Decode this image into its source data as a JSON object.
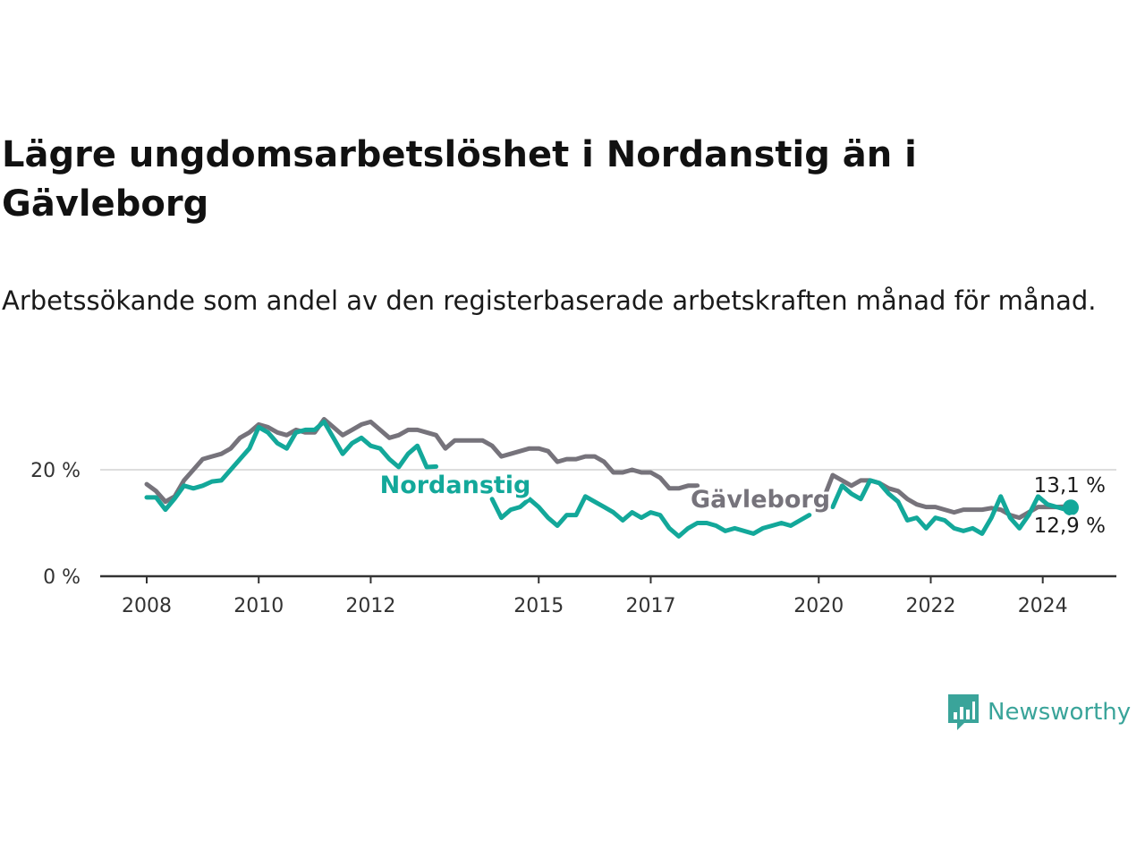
{
  "header": {
    "title": "Lägre ungdomsarbetslöshet i Nordanstig än i Gävleborg",
    "subtitle": "Arbetssökande som andel av den registerbaserade arbetskraften månad för månad."
  },
  "brand": {
    "name": "Newsworthy",
    "icon": "newsworthy-logo-icon",
    "color": "#3aa49a"
  },
  "colors": {
    "nordanstig": "#13a89a",
    "gavleborg": "#76737b",
    "axis": "#333333",
    "grid": "#dddddd"
  },
  "chart_data": {
    "type": "line",
    "title": "Lägre ungdomsarbetslöshet i Nordanstig än i Gävleborg",
    "subtitle": "Arbetssökande som andel av den registerbaserade arbetskraften månad för månad.",
    "xlabel": "",
    "ylabel": "",
    "xlim": [
      "2008-01",
      "2024-12"
    ],
    "ylim": [
      0,
      30
    ],
    "y_ticks": [
      0,
      20
    ],
    "y_tick_labels": [
      "0 %",
      "20 %"
    ],
    "x_ticks": [
      "2008",
      "2010",
      "2012",
      "2015",
      "2017",
      "2020",
      "2022",
      "2024"
    ],
    "grid": "horizontal",
    "legend": "inline-labels",
    "series": [
      {
        "name": "Nordanstig",
        "color": "#13a89a",
        "end_label": "12,9 %",
        "points": [
          [
            "2008-01",
            14.8
          ],
          [
            "2008-03",
            14.8
          ],
          [
            "2008-05",
            12.5
          ],
          [
            "2008-07",
            14.6
          ],
          [
            "2008-09",
            17.0
          ],
          [
            "2008-11",
            16.5
          ],
          [
            "2009-01",
            17.0
          ],
          [
            "2009-03",
            17.8
          ],
          [
            "2009-05",
            18.0
          ],
          [
            "2009-07",
            20.0
          ],
          [
            "2009-09",
            22.0
          ],
          [
            "2009-11",
            24.0
          ],
          [
            "2010-01",
            28.0
          ],
          [
            "2010-03",
            27.0
          ],
          [
            "2010-05",
            25.0
          ],
          [
            "2010-07",
            24.0
          ],
          [
            "2010-09",
            27.0
          ],
          [
            "2010-11",
            27.5
          ],
          [
            "2011-01",
            27.5
          ],
          [
            "2011-03",
            29.0
          ],
          [
            "2011-05",
            26.0
          ],
          [
            "2011-07",
            23.0
          ],
          [
            "2011-09",
            25.0
          ],
          [
            "2011-11",
            26.0
          ],
          [
            "2012-01",
            24.5
          ],
          [
            "2012-03",
            24.0
          ],
          [
            "2012-05",
            22.0
          ],
          [
            "2012-07",
            20.5
          ],
          [
            "2012-09",
            23.0
          ],
          [
            "2012-11",
            24.5
          ],
          [
            "2013-01",
            20.5
          ],
          [
            "2013-03",
            20.6
          ],
          null,
          [
            "2014-03",
            14.5
          ],
          [
            "2014-05",
            11.0
          ],
          [
            "2014-07",
            12.5
          ],
          [
            "2014-09",
            13.0
          ],
          [
            "2014-11",
            14.5
          ],
          [
            "2015-01",
            13.0
          ],
          [
            "2015-03",
            11.0
          ],
          [
            "2015-05",
            9.5
          ],
          [
            "2015-07",
            11.5
          ],
          [
            "2015-09",
            11.5
          ],
          [
            "2015-11",
            15.0
          ],
          [
            "2016-01",
            14.0
          ],
          [
            "2016-03",
            13.0
          ],
          [
            "2016-05",
            12.0
          ],
          [
            "2016-07",
            10.5
          ],
          [
            "2016-09",
            12.0
          ],
          [
            "2016-11",
            11.0
          ],
          [
            "2017-01",
            12.0
          ],
          [
            "2017-03",
            11.5
          ],
          [
            "2017-05",
            9.0
          ],
          [
            "2017-07",
            7.5
          ],
          [
            "2017-09",
            9.0
          ],
          [
            "2017-11",
            10.0
          ],
          [
            "2018-01",
            10.0
          ],
          [
            "2018-03",
            9.5
          ],
          [
            "2018-05",
            8.5
          ],
          [
            "2018-07",
            9.0
          ],
          [
            "2018-09",
            8.5
          ],
          [
            "2018-11",
            8.0
          ],
          [
            "2019-01",
            9.0
          ],
          [
            "2019-03",
            9.5
          ],
          [
            "2019-05",
            10.0
          ],
          [
            "2019-07",
            9.5
          ],
          [
            "2019-09",
            10.5
          ],
          [
            "2019-11",
            11.5
          ],
          null,
          [
            "2020-04",
            13.0
          ],
          [
            "2020-06",
            17.0
          ],
          [
            "2020-08",
            15.5
          ],
          [
            "2020-10",
            14.5
          ],
          [
            "2020-12",
            18.0
          ],
          [
            "2021-02",
            17.5
          ],
          [
            "2021-04",
            15.5
          ],
          [
            "2021-06",
            14.0
          ],
          [
            "2021-08",
            10.5
          ],
          [
            "2021-10",
            11.0
          ],
          [
            "2021-12",
            9.0
          ],
          [
            "2022-02",
            11.0
          ],
          [
            "2022-04",
            10.5
          ],
          [
            "2022-06",
            9.0
          ],
          [
            "2022-08",
            8.5
          ],
          [
            "2022-10",
            9.0
          ],
          [
            "2022-12",
            8.0
          ],
          [
            "2023-02",
            11.0
          ],
          [
            "2023-04",
            15.0
          ],
          [
            "2023-06",
            11.0
          ],
          [
            "2023-08",
            9.0
          ],
          [
            "2023-10",
            11.5
          ],
          [
            "2023-12",
            15.0
          ],
          [
            "2024-02",
            13.5
          ],
          [
            "2024-04",
            13.0
          ],
          [
            "2024-06",
            12.5
          ],
          [
            "2024-07",
            12.9
          ]
        ]
      },
      {
        "name": "Gävleborg",
        "color": "#76737b",
        "end_label": "13,1 %",
        "points": [
          [
            "2008-01",
            17.3
          ],
          [
            "2008-03",
            16.0
          ],
          [
            "2008-05",
            14.0
          ],
          [
            "2008-07",
            15.0
          ],
          [
            "2008-09",
            18.0
          ],
          [
            "2008-11",
            20.0
          ],
          [
            "2009-01",
            22.0
          ],
          [
            "2009-03",
            22.5
          ],
          [
            "2009-05",
            23.0
          ],
          [
            "2009-07",
            24.0
          ],
          [
            "2009-09",
            26.0
          ],
          [
            "2009-11",
            27.0
          ],
          [
            "2010-01",
            28.5
          ],
          [
            "2010-03",
            28.0
          ],
          [
            "2010-05",
            27.0
          ],
          [
            "2010-07",
            26.5
          ],
          [
            "2010-09",
            27.5
          ],
          [
            "2010-11",
            27.0
          ],
          [
            "2011-01",
            27.0
          ],
          [
            "2011-03",
            29.5
          ],
          [
            "2011-05",
            28.0
          ],
          [
            "2011-07",
            26.5
          ],
          [
            "2011-09",
            27.5
          ],
          [
            "2011-11",
            28.5
          ],
          [
            "2012-01",
            29.0
          ],
          [
            "2012-03",
            27.5
          ],
          [
            "2012-05",
            26.0
          ],
          [
            "2012-07",
            26.5
          ],
          [
            "2012-09",
            27.5
          ],
          [
            "2012-11",
            27.5
          ],
          [
            "2013-01",
            27.0
          ],
          [
            "2013-03",
            26.5
          ],
          [
            "2013-05",
            24.0
          ],
          [
            "2013-07",
            25.5
          ],
          [
            "2013-09",
            25.5
          ],
          [
            "2013-11",
            25.5
          ],
          [
            "2014-01",
            25.5
          ],
          [
            "2014-03",
            24.5
          ],
          [
            "2014-05",
            22.5
          ],
          [
            "2014-07",
            23.0
          ],
          [
            "2014-09",
            23.5
          ],
          [
            "2014-11",
            24.0
          ],
          [
            "2015-01",
            24.0
          ],
          [
            "2015-03",
            23.5
          ],
          [
            "2015-05",
            21.5
          ],
          [
            "2015-07",
            22.0
          ],
          [
            "2015-09",
            22.0
          ],
          [
            "2015-11",
            22.5
          ],
          [
            "2016-01",
            22.5
          ],
          [
            "2016-03",
            21.5
          ],
          [
            "2016-05",
            19.5
          ],
          [
            "2016-07",
            19.5
          ],
          [
            "2016-09",
            20.0
          ],
          [
            "2016-11",
            19.5
          ],
          [
            "2017-01",
            19.5
          ],
          [
            "2017-03",
            18.5
          ],
          [
            "2017-05",
            16.5
          ],
          [
            "2017-07",
            16.5
          ],
          [
            "2017-09",
            17.0
          ],
          [
            "2017-11",
            17.0
          ],
          null,
          [
            "2020-02",
            14.5
          ],
          [
            "2020-04",
            19.0
          ],
          [
            "2020-06",
            18.0
          ],
          [
            "2020-08",
            17.0
          ],
          [
            "2020-10",
            18.0
          ],
          [
            "2020-12",
            18.0
          ],
          [
            "2021-02",
            17.5
          ],
          [
            "2021-04",
            16.5
          ],
          [
            "2021-06",
            16.0
          ],
          [
            "2021-08",
            14.5
          ],
          [
            "2021-10",
            13.5
          ],
          [
            "2021-12",
            13.0
          ],
          [
            "2022-02",
            13.0
          ],
          [
            "2022-04",
            12.5
          ],
          [
            "2022-06",
            12.0
          ],
          [
            "2022-08",
            12.5
          ],
          [
            "2022-10",
            12.5
          ],
          [
            "2022-12",
            12.5
          ],
          [
            "2023-02",
            12.8
          ],
          [
            "2023-04",
            12.5
          ],
          [
            "2023-06",
            11.5
          ],
          [
            "2023-08",
            11.0
          ],
          [
            "2023-10",
            12.0
          ],
          [
            "2023-12",
            13.0
          ],
          [
            "2024-02",
            13.0
          ],
          [
            "2024-04",
            13.0
          ],
          [
            "2024-06",
            13.1
          ],
          [
            "2024-07",
            13.1
          ]
        ]
      }
    ],
    "annotations": [
      {
        "text": "Nordanstig",
        "series": "Nordanstig"
      },
      {
        "text": "Gävleborg",
        "series": "Gävleborg"
      },
      {
        "text": "13,1 %",
        "series": "Gävleborg"
      },
      {
        "text": "12,9 %",
        "series": "Nordanstig"
      }
    ]
  }
}
